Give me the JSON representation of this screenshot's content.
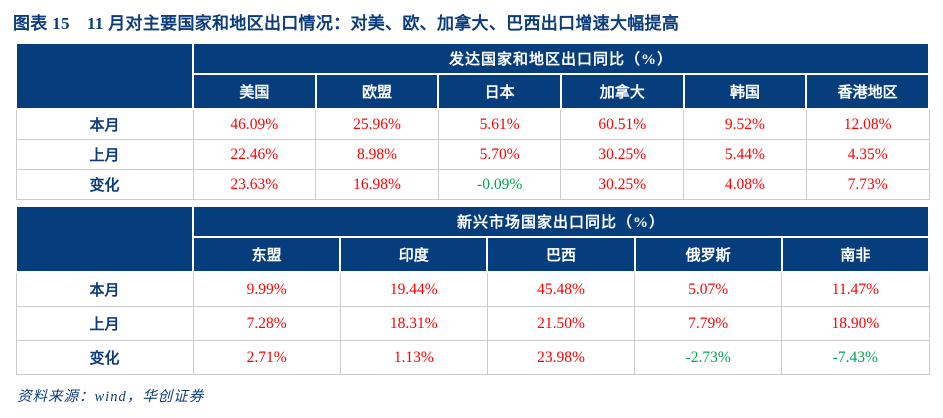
{
  "title": "图表 15　11 月对主要国家和地区出口情况：对美、欧、加拿大、巴西出口增速大幅提高",
  "footer": "资料来源：wind，华创证券",
  "colors": {
    "header_navy": "#063e7d",
    "positive_red": "#ff0000",
    "negative_green": "#00a651",
    "title_navy": "#0c3c7c",
    "grid_gray": "#cccccc"
  },
  "sections": [
    {
      "header": "发达国家和地区出口同比（%）",
      "columns": [
        "美国",
        "欧盟",
        "日本",
        "加拿大",
        "韩国",
        "香港地区"
      ],
      "rows": [
        {
          "label": "本月",
          "values": [
            "46.09%",
            "25.96%",
            "5.61%",
            "60.51%",
            "9.52%",
            "12.08%"
          ]
        },
        {
          "label": "上月",
          "values": [
            "22.46%",
            "8.98%",
            "5.70%",
            "30.25%",
            "5.44%",
            "4.35%"
          ]
        },
        {
          "label": "变化",
          "values": [
            "23.63%",
            "16.98%",
            "-0.09%",
            "30.25%",
            "4.08%",
            "7.73%"
          ]
        }
      ]
    },
    {
      "header": "新兴市场国家出口同比（%）",
      "columns": [
        "东盟",
        "印度",
        "巴西",
        "俄罗斯",
        "南非"
      ],
      "rows": [
        {
          "label": "本月",
          "values": [
            "9.99%",
            "19.44%",
            "45.48%",
            "5.07%",
            "11.47%"
          ]
        },
        {
          "label": "上月",
          "values": [
            "7.28%",
            "18.31%",
            "21.50%",
            "7.79%",
            "18.90%"
          ]
        },
        {
          "label": "变化",
          "values": [
            "2.71%",
            "1.13%",
            "23.98%",
            "-2.73%",
            "-7.43%"
          ]
        }
      ]
    }
  ],
  "chart_data": [
    {
      "type": "table",
      "title": "发达国家和地区出口同比（%）",
      "columns": [
        "",
        "美国",
        "欧盟",
        "日本",
        "加拿大",
        "韩国",
        "香港地区"
      ],
      "rows": [
        [
          "本月",
          46.09,
          25.96,
          5.61,
          60.51,
          9.52,
          12.08
        ],
        [
          "上月",
          22.46,
          8.98,
          5.7,
          30.25,
          5.44,
          4.35
        ],
        [
          "变化",
          23.63,
          16.98,
          -0.09,
          30.25,
          4.08,
          7.73
        ]
      ],
      "unit": "percent",
      "value_color_rule": "positive=red, negative=green"
    },
    {
      "type": "table",
      "title": "新兴市场国家出口同比（%）",
      "columns": [
        "",
        "东盟",
        "印度",
        "巴西",
        "俄罗斯",
        "南非"
      ],
      "rows": [
        [
          "本月",
          9.99,
          19.44,
          45.48,
          5.07,
          11.47
        ],
        [
          "上月",
          7.28,
          18.31,
          21.5,
          7.79,
          18.9
        ],
        [
          "变化",
          2.71,
          1.13,
          23.98,
          -2.73,
          -7.43
        ]
      ],
      "unit": "percent",
      "value_color_rule": "positive=red, negative=green"
    }
  ]
}
